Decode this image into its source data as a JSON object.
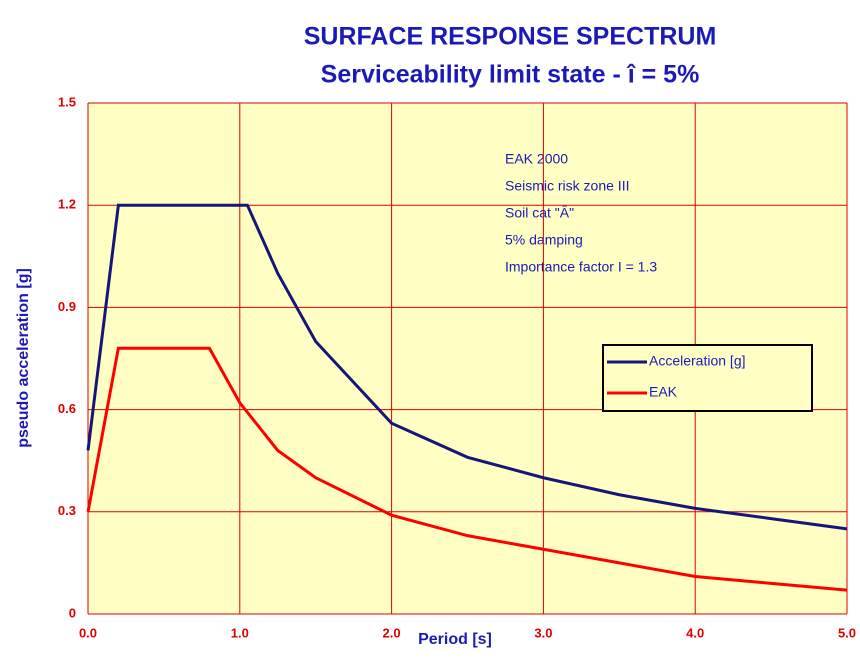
{
  "chart_data": {
    "type": "line",
    "title": "SURFACE RESPONSE SPECTRUM",
    "subtitle": "Serviceability limit state - î = 5%",
    "x_label": "Period [s]",
    "y_label": "pseudo acceleration   [g]",
    "annotations": [
      "EAK 2000",
      "Seismic risk zone III",
      "Soil cat \"Â\"",
      "5% damping",
      "Importance factor I = 1.3"
    ],
    "xlim": [
      0,
      5
    ],
    "ylim": [
      0,
      1.5
    ],
    "xticks": [
      {
        "value": 0,
        "label": "0.0"
      },
      {
        "value": 1,
        "label": "1.0"
      },
      {
        "value": 2,
        "label": "2.0"
      },
      {
        "value": 3,
        "label": "3.0"
      },
      {
        "value": 4,
        "label": "4.0"
      },
      {
        "value": 5,
        "label": "5.0"
      }
    ],
    "yticks": [
      0,
      0.3,
      0.6,
      0.9,
      1.2,
      1.5
    ],
    "grid": true,
    "legend": "right",
    "series": [
      {
        "name": "Acceleration [g]",
        "color": "#16167a",
        "x": [
          0,
          0.2,
          1.05,
          1.25,
          1.5,
          2.0,
          2.5,
          3.0,
          3.5,
          4.0,
          4.5,
          5.0
        ],
        "values": [
          0.48,
          1.2,
          1.2,
          1.0,
          0.8,
          0.56,
          0.46,
          0.4,
          0.35,
          0.31,
          0.28,
          0.25
        ]
      },
      {
        "name": "EAK",
        "color": "#ff0000",
        "x": [
          0,
          0.2,
          0.8,
          1.0,
          1.25,
          1.5,
          2.0,
          2.5,
          3.0,
          3.5,
          4.0,
          4.5,
          5.0
        ],
        "values": [
          0.3,
          0.78,
          0.78,
          0.62,
          0.48,
          0.4,
          0.29,
          0.23,
          0.19,
          0.15,
          0.11,
          0.09,
          0.07
        ]
      }
    ]
  }
}
